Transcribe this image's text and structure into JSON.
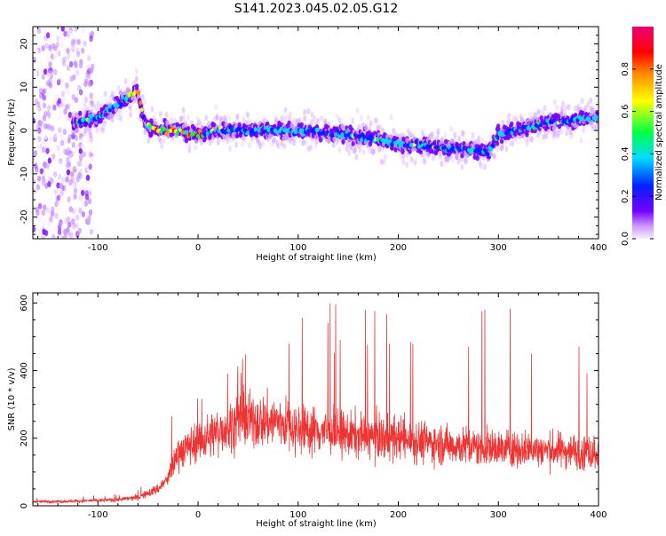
{
  "title": "S141.2023.045.02.05.G12",
  "chart_data": [
    {
      "type": "heatmap",
      "xlabel": "Height of straight line (km)",
      "ylabel": "Frequency (Hz)",
      "xlim": [
        -165,
        400
      ],
      "ylim": [
        -25,
        24
      ],
      "xticks": [
        -100,
        0,
        100,
        200,
        300,
        400
      ],
      "yticks": [
        -20,
        -10,
        0,
        10,
        20
      ],
      "colorbar": {
        "label": "Normalized spectral amplitude",
        "range": [
          0,
          1
        ],
        "ticks": [
          "0.0",
          "0.2",
          "0.4",
          "0.6",
          "0.8"
        ],
        "colors": [
          "#f8f0ff",
          "#cc99ff",
          "#7700ff",
          "#0022ff",
          "#00ddff",
          "#00ff44",
          "#ffff00",
          "#ff8800",
          "#ff0000",
          "#ee0077"
        ]
      },
      "ridge": {
        "x": [
          -120,
          -100,
          -80,
          -70,
          -60,
          -55,
          -50,
          -40,
          -20,
          0,
          20,
          50,
          100,
          150,
          180,
          200,
          250,
          290,
          300,
          350,
          400
        ],
        "y": [
          2,
          3,
          6,
          8,
          9,
          3,
          1,
          0,
          0,
          -1,
          0,
          0,
          0,
          -1,
          -2,
          -3,
          -4,
          -5,
          -1,
          2,
          3
        ]
      }
    },
    {
      "type": "line",
      "color": "#ee3333",
      "xlabel": "Height of straight line (km)",
      "ylabel": "SNR (10 * v/v)",
      "xlim": [
        -165,
        400
      ],
      "ylim": [
        0,
        630
      ],
      "xticks": [
        -100,
        0,
        100,
        200,
        300,
        400
      ],
      "yticks": [
        0,
        200,
        400,
        600
      ],
      "envelope": {
        "x": [
          -165,
          -120,
          -80,
          -60,
          -40,
          -30,
          -25,
          -20,
          0,
          20,
          40,
          60,
          80,
          100,
          150,
          200,
          250,
          300,
          350,
          400
        ],
        "mean": [
          12,
          14,
          18,
          25,
          50,
          80,
          120,
          160,
          190,
          220,
          250,
          250,
          250,
          230,
          210,
          200,
          180,
          170,
          165,
          160
        ],
        "peak": [
          25,
          28,
          35,
          55,
          100,
          130,
          340,
          280,
          320,
          400,
          430,
          520,
          580,
          600,
          600,
          610,
          580,
          620,
          560,
          510
        ]
      }
    }
  ]
}
